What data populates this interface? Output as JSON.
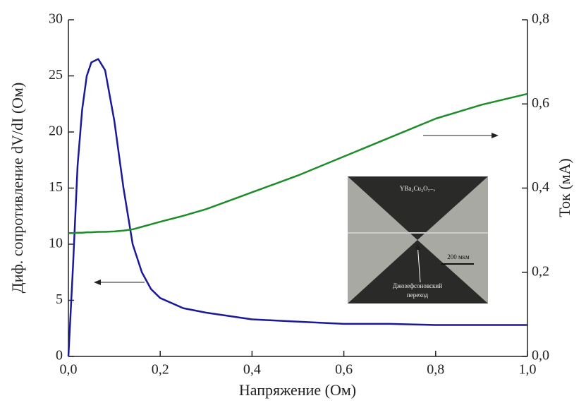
{
  "chart_data": {
    "type": "line",
    "xlabel": "Напряжение (Ом)",
    "ylabel": "Диф. сопротивление dV/dI (Ом)",
    "y2label": "Ток (мА)",
    "x": [
      0,
      0.01,
      0.02,
      0.03,
      0.04,
      0.05,
      0.065,
      0.08,
      0.1,
      0.12,
      0.14,
      0.16,
      0.18,
      0.2,
      0.25,
      0.3,
      0.35,
      0.4,
      0.45,
      0.5,
      0.6,
      0.7,
      0.8,
      0.9,
      1.0
    ],
    "series": [
      {
        "color": "#1a1a99",
        "values": [
          0,
          8,
          17,
          22,
          25,
          26.2,
          26.5,
          25.5,
          21,
          15,
          10,
          7.5,
          6,
          5.2,
          4.3,
          3.9,
          3.6,
          3.3,
          3.2,
          3.1,
          2.9,
          2.9,
          2.8,
          2.8,
          2.8
        ]
      },
      {
        "color": "#1e8c2a",
        "axis": "y2",
        "values": [
          0.293,
          0.293,
          0.294,
          0.294,
          0.295,
          0.295,
          0.296,
          0.296,
          0.297,
          0.299,
          0.302,
          0.308,
          0.314,
          0.32,
          0.334,
          0.35,
          0.37,
          0.39,
          0.41,
          0.43,
          0.475,
          0.52,
          0.565,
          0.598,
          0.624
        ]
      }
    ],
    "xlim": [
      0,
      1.0
    ],
    "xticks": [
      {
        "value": 0,
        "label": "0,0"
      },
      {
        "value": 0.2,
        "label": "0,2"
      },
      {
        "value": 0.4,
        "label": "0,4"
      },
      {
        "value": 0.6,
        "label": "0,6"
      },
      {
        "value": 0.8,
        "label": "0,8"
      },
      {
        "value": 1.0,
        "label": "1,0"
      }
    ],
    "ylim": [
      0,
      30
    ],
    "yticks": [
      0,
      5,
      10,
      15,
      20,
      25,
      30
    ],
    "y2lim": [
      0,
      0.8
    ],
    "y2ticks": [
      {
        "value": 0,
        "label": "0,0"
      },
      {
        "value": 0.2,
        "label": "0,2"
      },
      {
        "value": 0.4,
        "label": "0,4"
      },
      {
        "value": 0.6,
        "label": "0,6"
      },
      {
        "value": 0.8,
        "label": "0,8"
      }
    ],
    "annotations": [
      "YBa₂Cu₃O₇₋ₓ",
      "200 мкм",
      "Джозефсоновский",
      "переход"
    ]
  }
}
